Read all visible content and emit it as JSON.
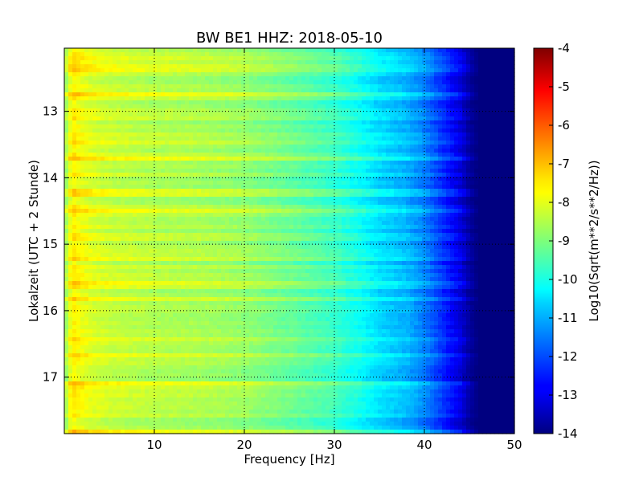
{
  "chart_data": {
    "type": "heatmap",
    "title": "BW BE1 HHZ: 2018-05-10",
    "xlabel": "Frequency [Hz]",
    "ylabel": "Lokalzeit (UTC + 2 Stunde)",
    "colorbar_label": "Log10(Sqrt(m**2/s**2/Hz))",
    "colormap": "jet",
    "grid": true,
    "xlim": [
      0,
      50
    ],
    "ylim": [
      17.85,
      12.05
    ],
    "x_ticks": [
      "10",
      "20",
      "30",
      "40",
      "50"
    ],
    "y_ticks": [
      "13",
      "14",
      "15",
      "16",
      "17"
    ],
    "clim": [
      -14,
      -4
    ],
    "colorbar_ticks": [
      "-4",
      "-5",
      "-6",
      "-7",
      "-8",
      "-9",
      "-10",
      "-11",
      "-12",
      "-13",
      "-14"
    ],
    "frequency_profile": {
      "frequency_hz": [
        0,
        0.5,
        1,
        1.5,
        3,
        5,
        10,
        15,
        20,
        25,
        30,
        33,
        35,
        38,
        40,
        42,
        44,
        45,
        46,
        50
      ],
      "log10_amplitude": [
        -9.0,
        -8.1,
        -7.6,
        -7.8,
        -8.1,
        -8.3,
        -8.5,
        -8.6,
        -8.8,
        -9.2,
        -9.7,
        -10.2,
        -10.6,
        -11.0,
        -11.5,
        -12.3,
        -13.1,
        -13.7,
        -14.0,
        -14.0
      ]
    },
    "bright_times_h": [
      12.15,
      12.32,
      12.7,
      13.45,
      13.65,
      14.2,
      14.45,
      14.9,
      15.2,
      15.58,
      15.8,
      16.4,
      16.65,
      17.1,
      17.25,
      17.78
    ]
  }
}
